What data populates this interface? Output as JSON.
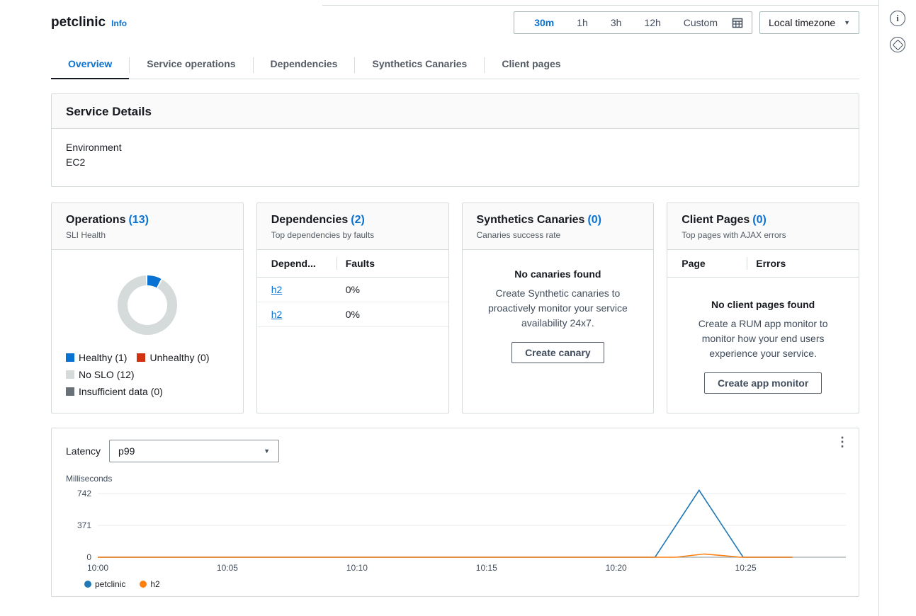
{
  "page": {
    "title": "petclinic",
    "info_label": "Info"
  },
  "time_selector": {
    "options": [
      "30m",
      "1h",
      "3h",
      "12h",
      "Custom"
    ],
    "selected": "30m",
    "timezone_label": "Local timezone"
  },
  "tabs": [
    {
      "label": "Overview",
      "active": true
    },
    {
      "label": "Service operations",
      "active": false
    },
    {
      "label": "Dependencies",
      "active": false
    },
    {
      "label": "Synthetics Canaries",
      "active": false
    },
    {
      "label": "Client pages",
      "active": false
    }
  ],
  "service_details": {
    "title": "Service Details",
    "environment_label": "Environment",
    "environment_value": "EC2"
  },
  "operations_card": {
    "title": "Operations",
    "count": "13",
    "subtitle": "SLI Health",
    "legend": [
      {
        "label": "Healthy (1)",
        "color": "#0972d3"
      },
      {
        "label": "Unhealthy (0)",
        "color": "#d13212"
      },
      {
        "label": "No SLO (12)",
        "color": "#d5dbdb"
      },
      {
        "label": "Insufficient data (0)",
        "color": "#687078"
      }
    ],
    "donut": {
      "healthy": 1,
      "unhealthy": 0,
      "no_slo": 12,
      "insufficient": 0
    }
  },
  "dependencies_card": {
    "title": "Dependencies",
    "count": "2",
    "subtitle": "Top dependencies by faults",
    "columns": [
      "Depend...",
      "Faults"
    ],
    "rows": [
      {
        "name": "h2",
        "faults": "0%"
      },
      {
        "name": "h2",
        "faults": "0%"
      }
    ]
  },
  "synthetics_card": {
    "title": "Synthetics Canaries",
    "count": "0",
    "subtitle": "Canaries success rate",
    "empty_title": "No canaries found",
    "empty_text": "Create Synthetic canaries to proactively monitor your service availability 24x7.",
    "button_label": "Create canary"
  },
  "client_pages_card": {
    "title": "Client Pages",
    "count": "0",
    "subtitle": "Top pages with AJAX errors",
    "columns": [
      "Page",
      "Errors"
    ],
    "empty_title": "No client pages found",
    "empty_text": "Create a RUM app monitor to monitor how your end users experience your service.",
    "button_label": "Create app monitor"
  },
  "latency": {
    "label": "Latency",
    "selected_percentile": "p99"
  },
  "chart_data": {
    "type": "line",
    "title": "Latency",
    "ylabel": "Milliseconds",
    "y_ticks": [
      0,
      371,
      742
    ],
    "x_ticks": [
      {
        "label": "10:00",
        "minute": 0
      },
      {
        "label": "10:05",
        "minute": 5
      },
      {
        "label": "10:10",
        "minute": 10
      },
      {
        "label": "10:15",
        "minute": 15
      },
      {
        "label": "10:20",
        "minute": 20
      },
      {
        "label": "10:25",
        "minute": 25
      }
    ],
    "x_range_minutes": [
      0,
      29
    ],
    "ylim": [
      0,
      816
    ],
    "grid": "horizontal",
    "legend_position": "bottom",
    "series": [
      {
        "name": "petclinic",
        "color": "#1f77b4",
        "points": [
          [
            0,
            0
          ],
          [
            21.5,
            0
          ],
          [
            23.2,
            780
          ],
          [
            24.9,
            0
          ],
          [
            26.8,
            0
          ]
        ]
      },
      {
        "name": "h2",
        "color": "#ff7f0e",
        "points": [
          [
            0,
            0
          ],
          [
            22.3,
            0
          ],
          [
            23.4,
            38
          ],
          [
            24.8,
            0
          ],
          [
            26.8,
            0
          ]
        ]
      }
    ]
  }
}
